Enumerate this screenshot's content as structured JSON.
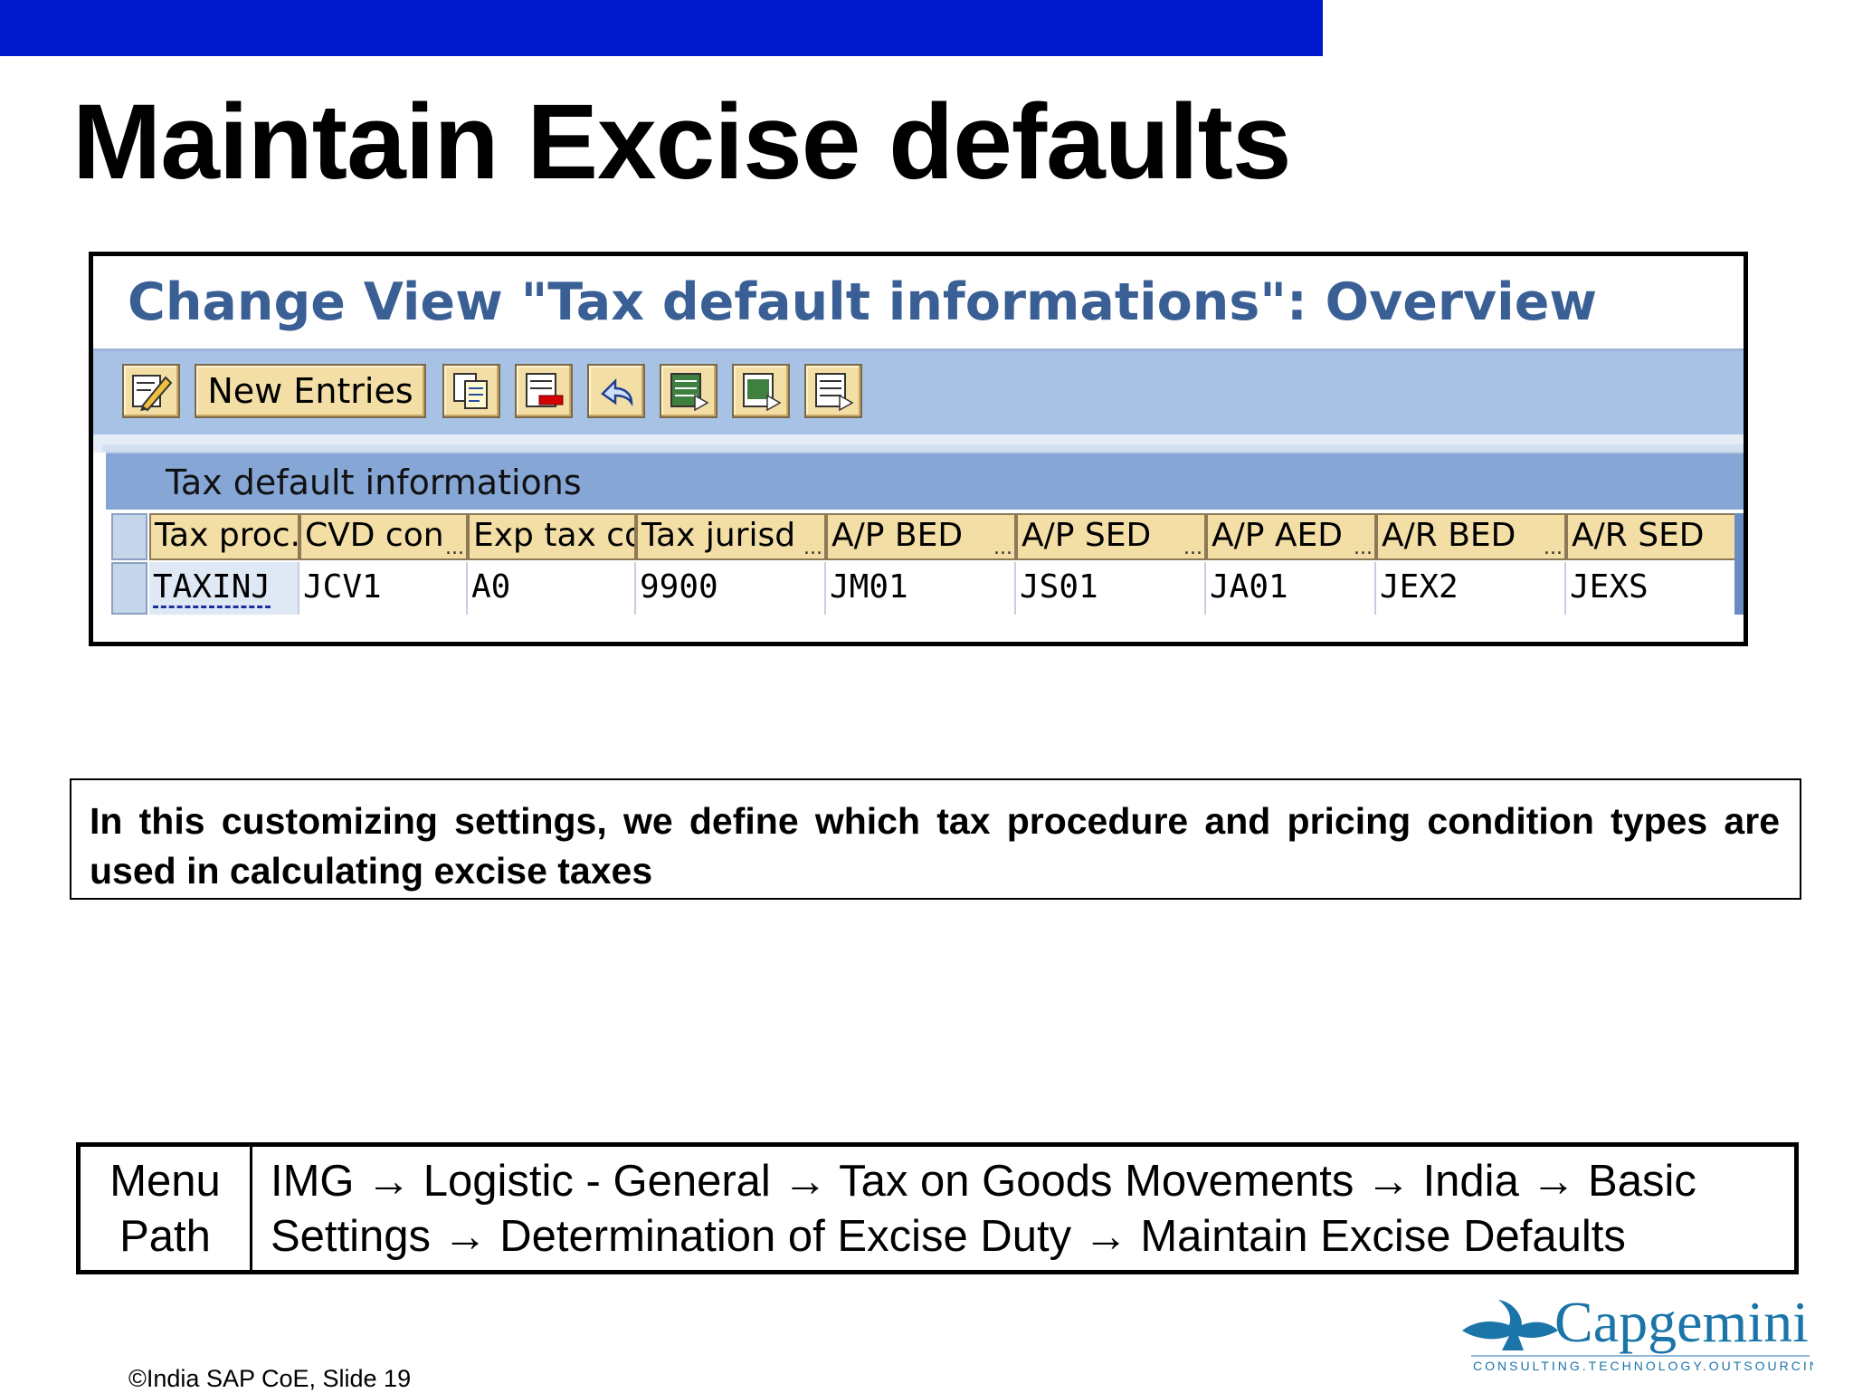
{
  "slide": {
    "title": "Maintain Excise defaults",
    "footer": "©India SAP CoE, Slide 19"
  },
  "sap": {
    "window_title": "Change View \"Tax default informations\": Overview",
    "toolbar": {
      "new_entries_label": "New Entries",
      "icons": [
        "display-change-icon",
        "copy-icon",
        "delete-icon",
        "undo-icon",
        "select-all-icon",
        "select-block-icon",
        "deselect-all-icon"
      ]
    },
    "section_title": "Tax default informations",
    "table": {
      "columns": [
        "Tax proc.",
        "CVD con",
        "Exp tax cd",
        "Tax jurisd",
        "A/P BED",
        "A/P SED",
        "A/P AED",
        "A/R BED",
        "A/R SED"
      ],
      "truncated_indicator": "...",
      "rows": [
        [
          "TAXINJ",
          "JCV1",
          "A0",
          "9900",
          "JM01",
          "JS01",
          "JA01",
          "JEX2",
          "JEXS"
        ]
      ]
    }
  },
  "description": "In this customizing settings, we define which tax procedure and pricing condition types are used in calculating excise taxes",
  "menu_path": {
    "label_line1": "Menu",
    "label_line2": "Path",
    "text": "IMG → Logistic - General → Tax on Goods Movements → India → Basic Settings → Determination of Excise Duty → Maintain Excise Defaults"
  },
  "logo": {
    "brand": "Capgemini",
    "tagline": "CONSULTING.TECHNOLOGY.OUTSOURCING"
  },
  "colors": {
    "top_bar": "#0019cc",
    "sap_title": "#3a5f95",
    "toolbar_bg": "#a8c2e6",
    "button_bg": "#f3dea6",
    "section_header_bg": "#86a6d6",
    "logo_blue": "#1b75a8"
  }
}
